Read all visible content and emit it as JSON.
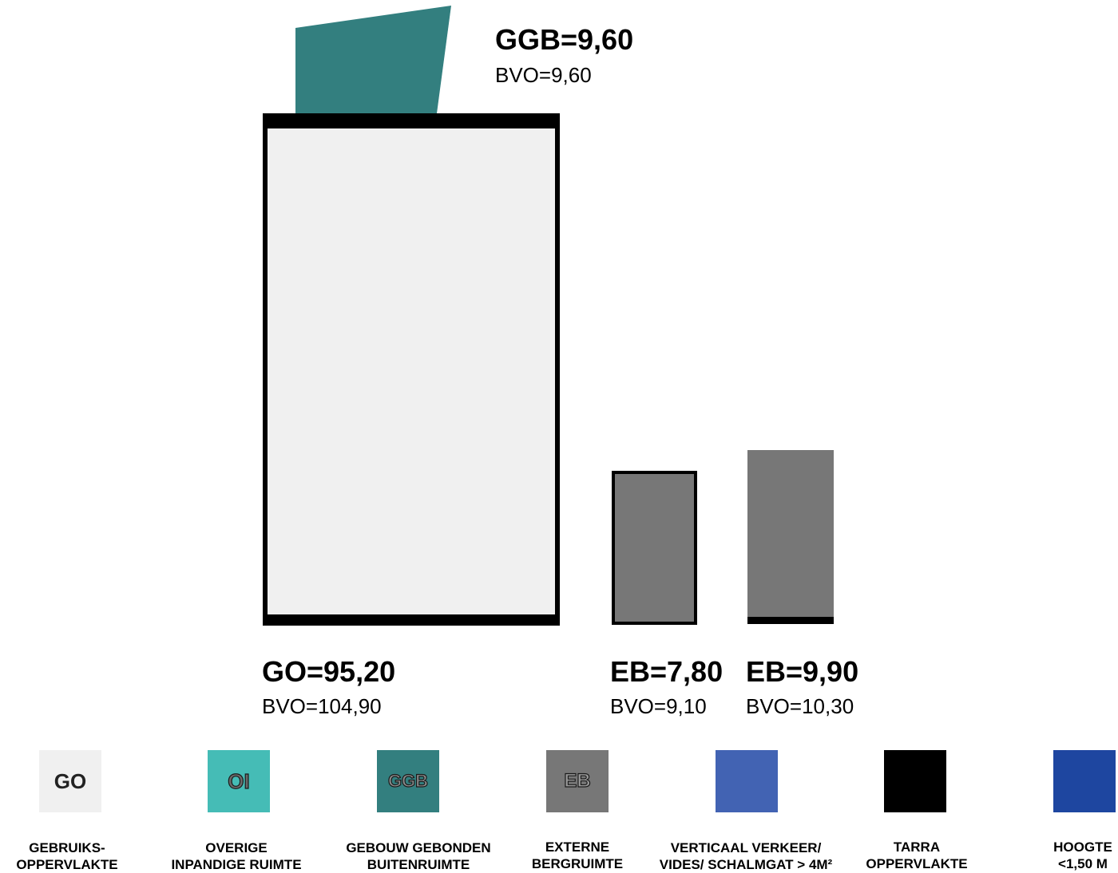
{
  "colors": {
    "go": "#f0f0f0",
    "oi": "#45bcb6",
    "ggb": "#337f7f",
    "eb": "#777777",
    "verkeer": "#4263b3",
    "tarra": "#000000",
    "hoogte": "#1e46a0"
  },
  "blocks": {
    "ggb": {
      "title": "GGB=9,60",
      "sub": "BVO=9,60"
    },
    "go": {
      "title": "GO=95,20",
      "sub": "BVO=104,90"
    },
    "eb1": {
      "title": "EB=7,80",
      "sub": "BVO=9,10"
    },
    "eb2": {
      "title": "EB=9,90",
      "sub": "BVO=10,30"
    }
  },
  "legend": [
    {
      "code": "GO",
      "line1": "GEBRUIKS-",
      "line2": "OPPERVLAKTE"
    },
    {
      "code": "OI",
      "line1": "OVERIGE",
      "line2": "INPANDIGE RUIMTE"
    },
    {
      "code": "GGB",
      "line1": "GEBOUW GEBONDEN",
      "line2": "BUITENRUIMTE"
    },
    {
      "code": "EB",
      "line1": "EXTERNE",
      "line2": "BERGRUIMTE"
    },
    {
      "code": "",
      "line1": "VERTICAAL VERKEER/",
      "line2": "VIDES/ SCHALMGAT > 4M²"
    },
    {
      "code": "",
      "line1": "TARRA",
      "line2": "OPPERVLAKTE"
    },
    {
      "code": "",
      "line1": "HOOGTE",
      "line2": "<1,50 M"
    }
  ]
}
